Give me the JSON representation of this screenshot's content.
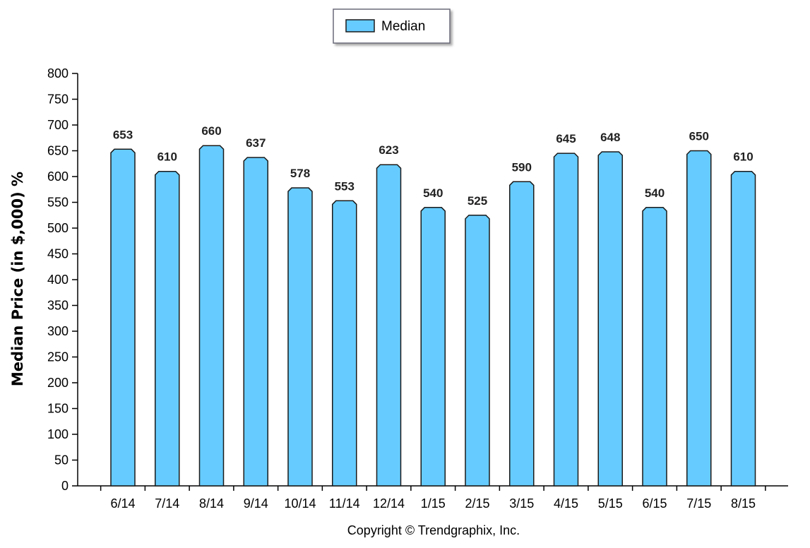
{
  "chart_data": {
    "type": "bar",
    "categories": [
      "6/14",
      "7/14",
      "8/14",
      "9/14",
      "10/14",
      "11/14",
      "12/14",
      "1/15",
      "2/15",
      "3/15",
      "4/15",
      "5/15",
      "6/15",
      "7/15",
      "8/15"
    ],
    "series": [
      {
        "name": "Median",
        "values": [
          653,
          610,
          660,
          637,
          578,
          553,
          623,
          540,
          525,
          590,
          645,
          648,
          540,
          650,
          610
        ]
      }
    ],
    "ylabel": "Median Price (in $,000) %",
    "xlabel": "",
    "ylim": [
      0,
      800
    ],
    "yticks": [
      0,
      50,
      100,
      150,
      200,
      250,
      300,
      350,
      400,
      450,
      500,
      550,
      600,
      650,
      700,
      750,
      800
    ],
    "grid": false,
    "legend": "top-center",
    "bar_color": "#66ccff",
    "bar_edge_color": "#1a1a1a"
  },
  "footer": {
    "copyright": "Copyright © Trendgraphix, Inc."
  }
}
